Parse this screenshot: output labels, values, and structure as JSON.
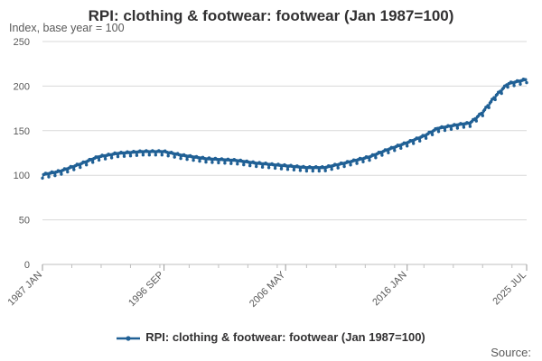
{
  "chart_data": {
    "type": "line",
    "title": "RPI: clothing & footwear: footwear (Jan 1987=100)",
    "ylabel": "Index, base year = 100",
    "ylim": [
      0,
      250
    ],
    "yticks": [
      0,
      50,
      100,
      150,
      200,
      250
    ],
    "xlim": [
      "1987-01",
      "2025-07"
    ],
    "xticks": [
      {
        "label": "1987 JAN",
        "date": "1987-01"
      },
      {
        "label": "1996 SEP",
        "date": "1996-09"
      },
      {
        "label": "2006 MAY",
        "date": "2006-05"
      },
      {
        "label": "2016 JAN",
        "date": "2016-01"
      },
      {
        "label": "2025 JUL",
        "date": "2025-07"
      }
    ],
    "grid": true,
    "legend_position": "bottom",
    "series": [
      {
        "name": "RPI: clothing & footwear: footwear (Jan 1987=100)",
        "color": "#206095",
        "note": "approximate trend anchors read from the chart; monthly seasonal wiggle drawn by script",
        "points": [
          {
            "date": "1987-01",
            "value": 100
          },
          {
            "date": "1988-06",
            "value": 104
          },
          {
            "date": "1990-01",
            "value": 112
          },
          {
            "date": "1991-06",
            "value": 120
          },
          {
            "date": "1993-01",
            "value": 124
          },
          {
            "date": "1995-01",
            "value": 126
          },
          {
            "date": "1996-09",
            "value": 126
          },
          {
            "date": "1998-01",
            "value": 122
          },
          {
            "date": "2000-01",
            "value": 118
          },
          {
            "date": "2002-06",
            "value": 116
          },
          {
            "date": "2004-01",
            "value": 113
          },
          {
            "date": "2006-05",
            "value": 110
          },
          {
            "date": "2008-01",
            "value": 108
          },
          {
            "date": "2009-06",
            "value": 108
          },
          {
            "date": "2011-01",
            "value": 113
          },
          {
            "date": "2013-01",
            "value": 120
          },
          {
            "date": "2014-06",
            "value": 128
          },
          {
            "date": "2016-01",
            "value": 136
          },
          {
            "date": "2017-06",
            "value": 144
          },
          {
            "date": "2018-06",
            "value": 152
          },
          {
            "date": "2020-01",
            "value": 156
          },
          {
            "date": "2021-01",
            "value": 158
          },
          {
            "date": "2022-01",
            "value": 170
          },
          {
            "date": "2023-01",
            "value": 188
          },
          {
            "date": "2024-01",
            "value": 202
          },
          {
            "date": "2025-07",
            "value": 207
          }
        ]
      }
    ]
  },
  "footer": {
    "source_label": "Source:"
  }
}
